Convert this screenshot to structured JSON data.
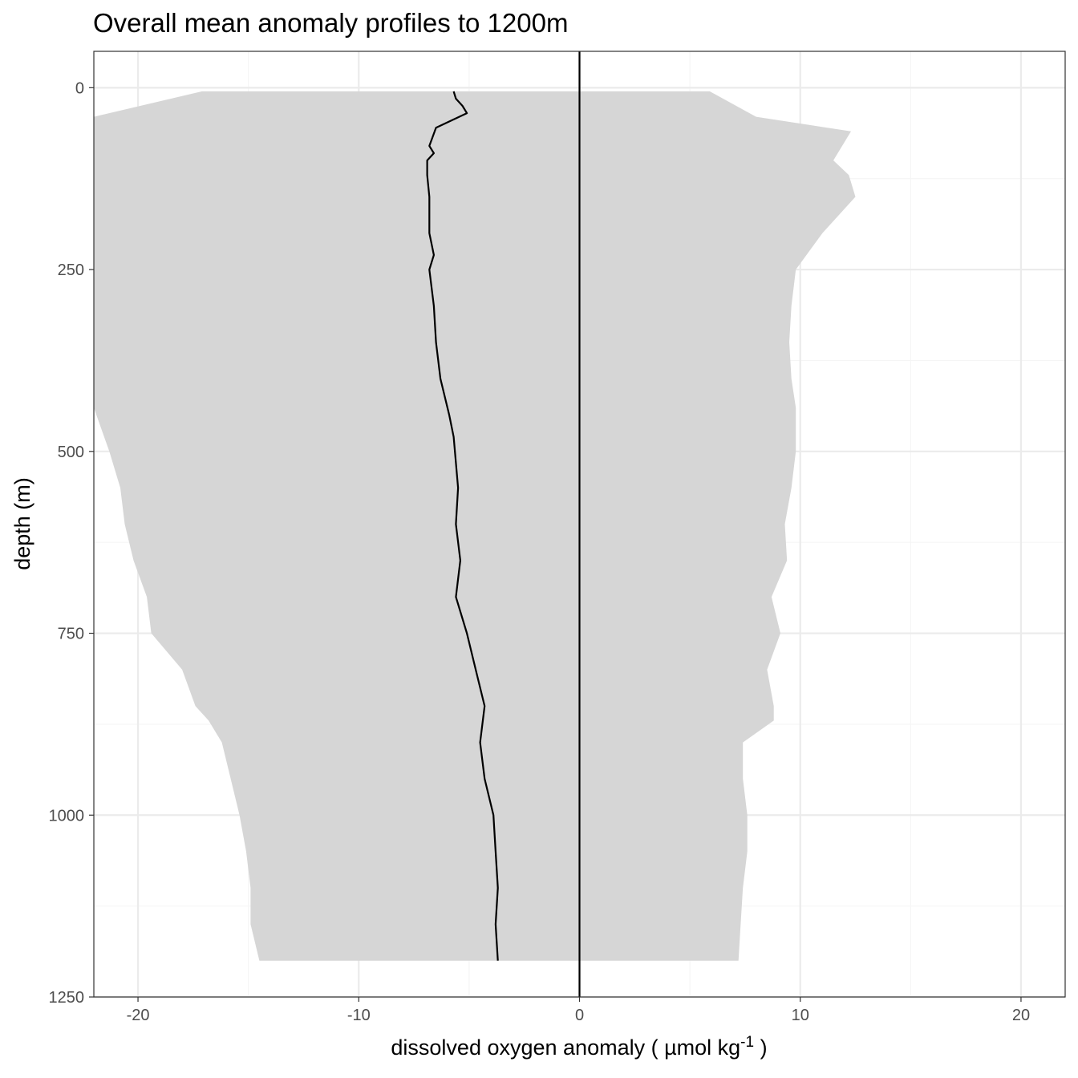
{
  "chart_data": {
    "type": "area",
    "title": "Overall mean anomaly profiles to 1200m",
    "xlabel": {
      "prefix": "dissolved oxygen anomaly ( µmol kg",
      "sup": "-1",
      "suffix": " )"
    },
    "ylabel": "depth (m)",
    "xlim": [
      -22,
      22
    ],
    "ylim": [
      1250,
      -50
    ],
    "y_reversed": true,
    "x_ticks": [
      -20,
      -10,
      0,
      10,
      20
    ],
    "x_tick_labels": [
      "-20",
      "-10",
      "0",
      "10",
      "20"
    ],
    "y_ticks": [
      0,
      250,
      500,
      750,
      1000,
      1250
    ],
    "y_tick_labels": [
      "0",
      "250",
      "500",
      "750",
      "1000",
      "1250"
    ],
    "grid": true,
    "colors": {
      "band": "#d6d6d6",
      "mean_line": "#000000",
      "zero_line": "#000000",
      "grid_major": "#ebebeb",
      "grid_minor": "#f5f5f5"
    },
    "series": [
      {
        "kind": "band",
        "depth": [
          5,
          40,
          60,
          100,
          120,
          150,
          200,
          250,
          300,
          350,
          400,
          440,
          500,
          550,
          600,
          650,
          700,
          750,
          800,
          850,
          870,
          900,
          950,
          1000,
          1050,
          1100,
          1150,
          1200
        ],
        "lower": [
          -17.1,
          -22.0,
          -22.0,
          -22.0,
          -22.0,
          -22.0,
          -22.0,
          -22.0,
          -22.0,
          -22.0,
          -22.0,
          -22.0,
          -21.3,
          -20.8,
          -20.6,
          -20.2,
          -19.6,
          -19.4,
          -18.0,
          -17.4,
          -16.8,
          -16.2,
          -15.8,
          -15.4,
          -15.1,
          -14.9,
          -14.9,
          -14.5
        ],
        "upper": [
          5.9,
          8.0,
          12.3,
          11.5,
          12.2,
          12.5,
          11.0,
          9.8,
          9.6,
          9.5,
          9.6,
          9.8,
          9.8,
          9.6,
          9.3,
          9.4,
          8.7,
          9.1,
          8.5,
          8.8,
          8.8,
          7.4,
          7.4,
          7.6,
          7.6,
          7.4,
          7.3,
          7.2
        ]
      },
      {
        "kind": "line",
        "depth": [
          5,
          15,
          25,
          35,
          55,
          80,
          90,
          100,
          120,
          150,
          200,
          230,
          250,
          300,
          350,
          400,
          450,
          480,
          550,
          600,
          650,
          700,
          750,
          800,
          850,
          900,
          950,
          1000,
          1050,
          1100,
          1150,
          1200
        ],
        "values": [
          -5.7,
          -5.6,
          -5.3,
          -5.1,
          -6.5,
          -6.8,
          -6.6,
          -6.9,
          -6.9,
          -6.8,
          -6.8,
          -6.6,
          -6.8,
          -6.6,
          -6.5,
          -6.3,
          -5.9,
          -5.7,
          -5.5,
          -5.6,
          -5.4,
          -5.6,
          -5.1,
          -4.7,
          -4.3,
          -4.5,
          -4.3,
          -3.9,
          -3.8,
          -3.7,
          -3.8,
          -3.7
        ]
      }
    ],
    "reference_line": {
      "x": 0
    }
  }
}
